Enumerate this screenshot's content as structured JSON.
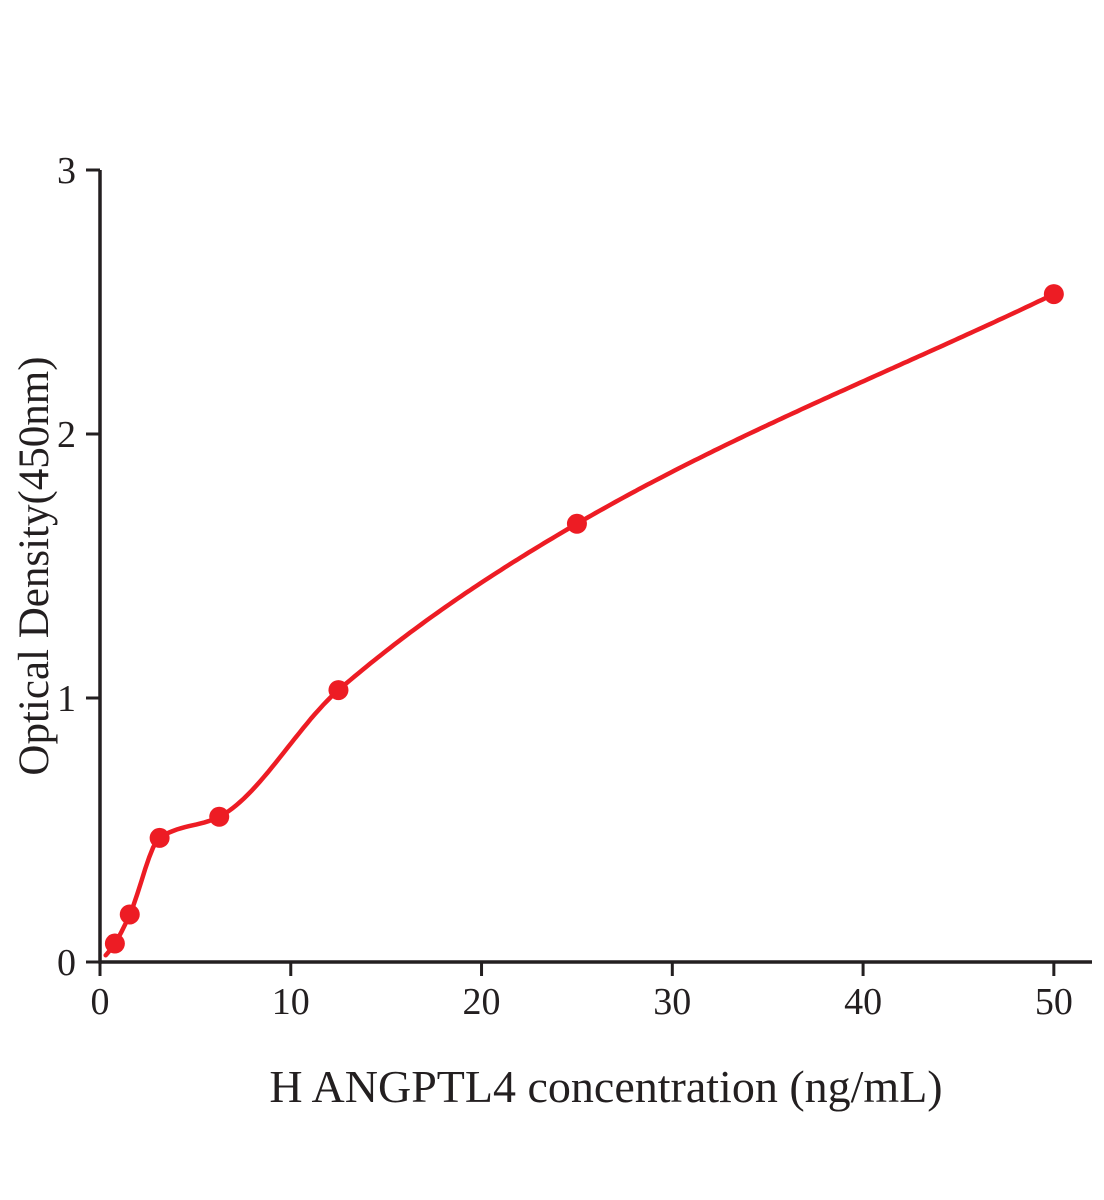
{
  "chart_data": {
    "type": "scatter",
    "curve_style": "smooth-fit-line",
    "x": [
      0.78,
      1.56,
      3.125,
      6.25,
      12.5,
      25,
      50
    ],
    "y": [
      0.07,
      0.18,
      0.47,
      0.55,
      1.03,
      1.66,
      2.53
    ],
    "xlim": [
      0,
      52
    ],
    "ylim": [
      0,
      3
    ],
    "xticks": [
      0,
      10,
      20,
      30,
      40,
      50
    ],
    "yticks": [
      0,
      1,
      2,
      3
    ],
    "title": "",
    "xlabel": "H ANGPTL4 concentration (ng/mL)",
    "ylabel": "Optical Density(450nm)",
    "grid": false,
    "legend": false,
    "point_color": "#ed1c24",
    "line_color": "#ed1c24",
    "axis_color": "#231f20"
  }
}
